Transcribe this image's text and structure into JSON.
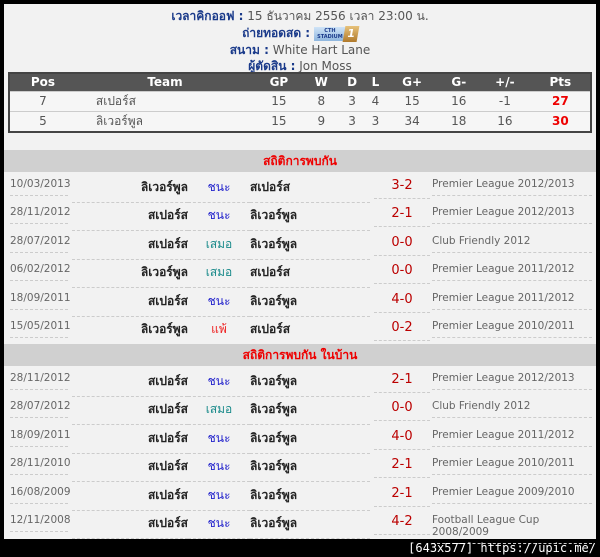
{
  "header": {
    "kickoff_label": "เวลาคิกออฟ :",
    "kickoff_value": "15 ธันวาคม 2556 เวลา 23:00 น.",
    "broadcast_label": "ถ่ายทอดสด :",
    "broadcast_logo_text": "CTH STADIUM",
    "broadcast_logo_number": "1",
    "stadium_label": "สนาม :",
    "stadium_value": "White Hart Lane",
    "referee_label": "ผู้ตัดสิน :",
    "referee_value": "Jon Moss"
  },
  "standings": {
    "columns": [
      "Pos",
      "Team",
      "GP",
      "W",
      "D",
      "L",
      "G+",
      "G-",
      "+/-",
      "Pts"
    ],
    "rows": [
      [
        "7",
        "สเปอร์ส",
        "15",
        "8",
        "3",
        "4",
        "15",
        "16",
        "-1",
        "27"
      ],
      [
        "5",
        "ลิเวอร์พูล",
        "15",
        "9",
        "3",
        "3",
        "34",
        "18",
        "16",
        "30"
      ]
    ]
  },
  "h2h": {
    "title": "สถิติการพบกัน",
    "matches": [
      {
        "date": "10/03/2013",
        "home": "ลิเวอร์พูล",
        "result": "ชนะ",
        "type": "win",
        "away": "สเปอร์ส",
        "score": "3-2",
        "comp": "Premier League 2012/2013"
      },
      {
        "date": "28/11/2012",
        "home": "สเปอร์ส",
        "result": "ชนะ",
        "type": "win",
        "away": "ลิเวอร์พูล",
        "score": "2-1",
        "comp": "Premier League 2012/2013"
      },
      {
        "date": "28/07/2012",
        "home": "สเปอร์ส",
        "result": "เสมอ",
        "type": "draw",
        "away": "ลิเวอร์พูล",
        "score": "0-0",
        "comp": "Club Friendly 2012"
      },
      {
        "date": "06/02/2012",
        "home": "ลิเวอร์พูล",
        "result": "เสมอ",
        "type": "draw",
        "away": "สเปอร์ส",
        "score": "0-0",
        "comp": "Premier League 2011/2012"
      },
      {
        "date": "18/09/2011",
        "home": "สเปอร์ส",
        "result": "ชนะ",
        "type": "win",
        "away": "ลิเวอร์พูล",
        "score": "4-0",
        "comp": "Premier League 2011/2012"
      },
      {
        "date": "15/05/2011",
        "home": "ลิเวอร์พูล",
        "result": "แพ้",
        "type": "lose",
        "away": "สเปอร์ส",
        "score": "0-2",
        "comp": "Premier League 2010/2011"
      }
    ]
  },
  "home_h2h": {
    "title": "สถิติการพบกัน ในบ้าน",
    "matches": [
      {
        "date": "28/11/2012",
        "home": "สเปอร์ส",
        "result": "ชนะ",
        "type": "win",
        "away": "ลิเวอร์พูล",
        "score": "2-1",
        "comp": "Premier League 2012/2013"
      },
      {
        "date": "28/07/2012",
        "home": "สเปอร์ส",
        "result": "เสมอ",
        "type": "draw",
        "away": "ลิเวอร์พูล",
        "score": "0-0",
        "comp": "Club Friendly 2012"
      },
      {
        "date": "18/09/2011",
        "home": "สเปอร์ส",
        "result": "ชนะ",
        "type": "win",
        "away": "ลิเวอร์พูล",
        "score": "4-0",
        "comp": "Premier League 2011/2012"
      },
      {
        "date": "28/11/2010",
        "home": "สเปอร์ส",
        "result": "ชนะ",
        "type": "win",
        "away": "ลิเวอร์พูล",
        "score": "2-1",
        "comp": "Premier League 2010/2011"
      },
      {
        "date": "16/08/2009",
        "home": "สเปอร์ส",
        "result": "ชนะ",
        "type": "win",
        "away": "ลิเวอร์พูล",
        "score": "2-1",
        "comp": "Premier League 2009/2010"
      },
      {
        "date": "12/11/2008",
        "home": "สเปอร์ส",
        "result": "ชนะ",
        "type": "win",
        "away": "ลิเวอร์พูล",
        "score": "4-2",
        "comp": "Football League Cup 2008/2009"
      }
    ]
  },
  "footer": "[643x577] https://upic.me/",
  "colors": {
    "win": "#2222cc",
    "draw": "#198a8a",
    "lose": "#ee2222",
    "score": "#bb0000",
    "section_title": "#ee0000"
  }
}
